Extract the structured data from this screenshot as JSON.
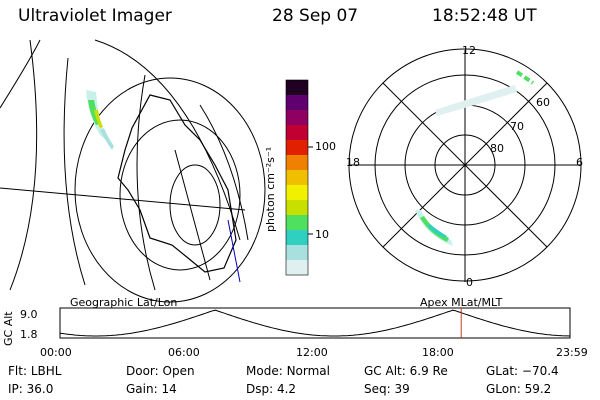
{
  "header": {
    "instrument": "Ultraviolet Imager",
    "date": "28 Sep 07",
    "time": "18:52:48 UT"
  },
  "left_panel": {
    "label": "Geographic Lat/Lon"
  },
  "right_panel": {
    "label": "Apex MLat/MLT",
    "mlt_labels": {
      "top": "12",
      "left": "18",
      "right": "6",
      "bottom": "0"
    },
    "lat_labels": [
      "60",
      "70",
      "80"
    ]
  },
  "colorbar": {
    "unit": "photon cm⁻²s⁻¹",
    "ticks": [
      "100",
      "10"
    ],
    "scale": "log",
    "colors": [
      "#e0f0f0",
      "#a8e0e0",
      "#30d0c0",
      "#50e060",
      "#c8e000",
      "#f0f000",
      "#f0c000",
      "#f08000",
      "#e02000",
      "#c00030",
      "#900060",
      "#600070",
      "#200020"
    ]
  },
  "orbit_plot": {
    "ylabel": "GC Alt",
    "yticks": [
      "9.0",
      "1.8"
    ],
    "xticks": [
      "00:00",
      "06:00",
      "12:00",
      "18:00",
      "23:59"
    ],
    "current_time_marker_hours": 18.88
  },
  "info": {
    "row1": [
      {
        "key": "Flt:",
        "val": "LBHL"
      },
      {
        "key": "Door:",
        "val": "Open"
      },
      {
        "key": "Mode:",
        "val": "Normal"
      },
      {
        "key": "GC Alt:",
        "val": "6.9 Re"
      },
      {
        "key": "GLat:",
        "val": "−70.4"
      }
    ],
    "row2": [
      {
        "key": "IP:",
        "val": "36.0"
      },
      {
        "key": "Gain:",
        "val": "14"
      },
      {
        "key": "Dsp:",
        "val": "4.2"
      },
      {
        "key": "Seq:",
        "val": "39"
      },
      {
        "key": "GLon:",
        "val": "59.2"
      }
    ]
  }
}
